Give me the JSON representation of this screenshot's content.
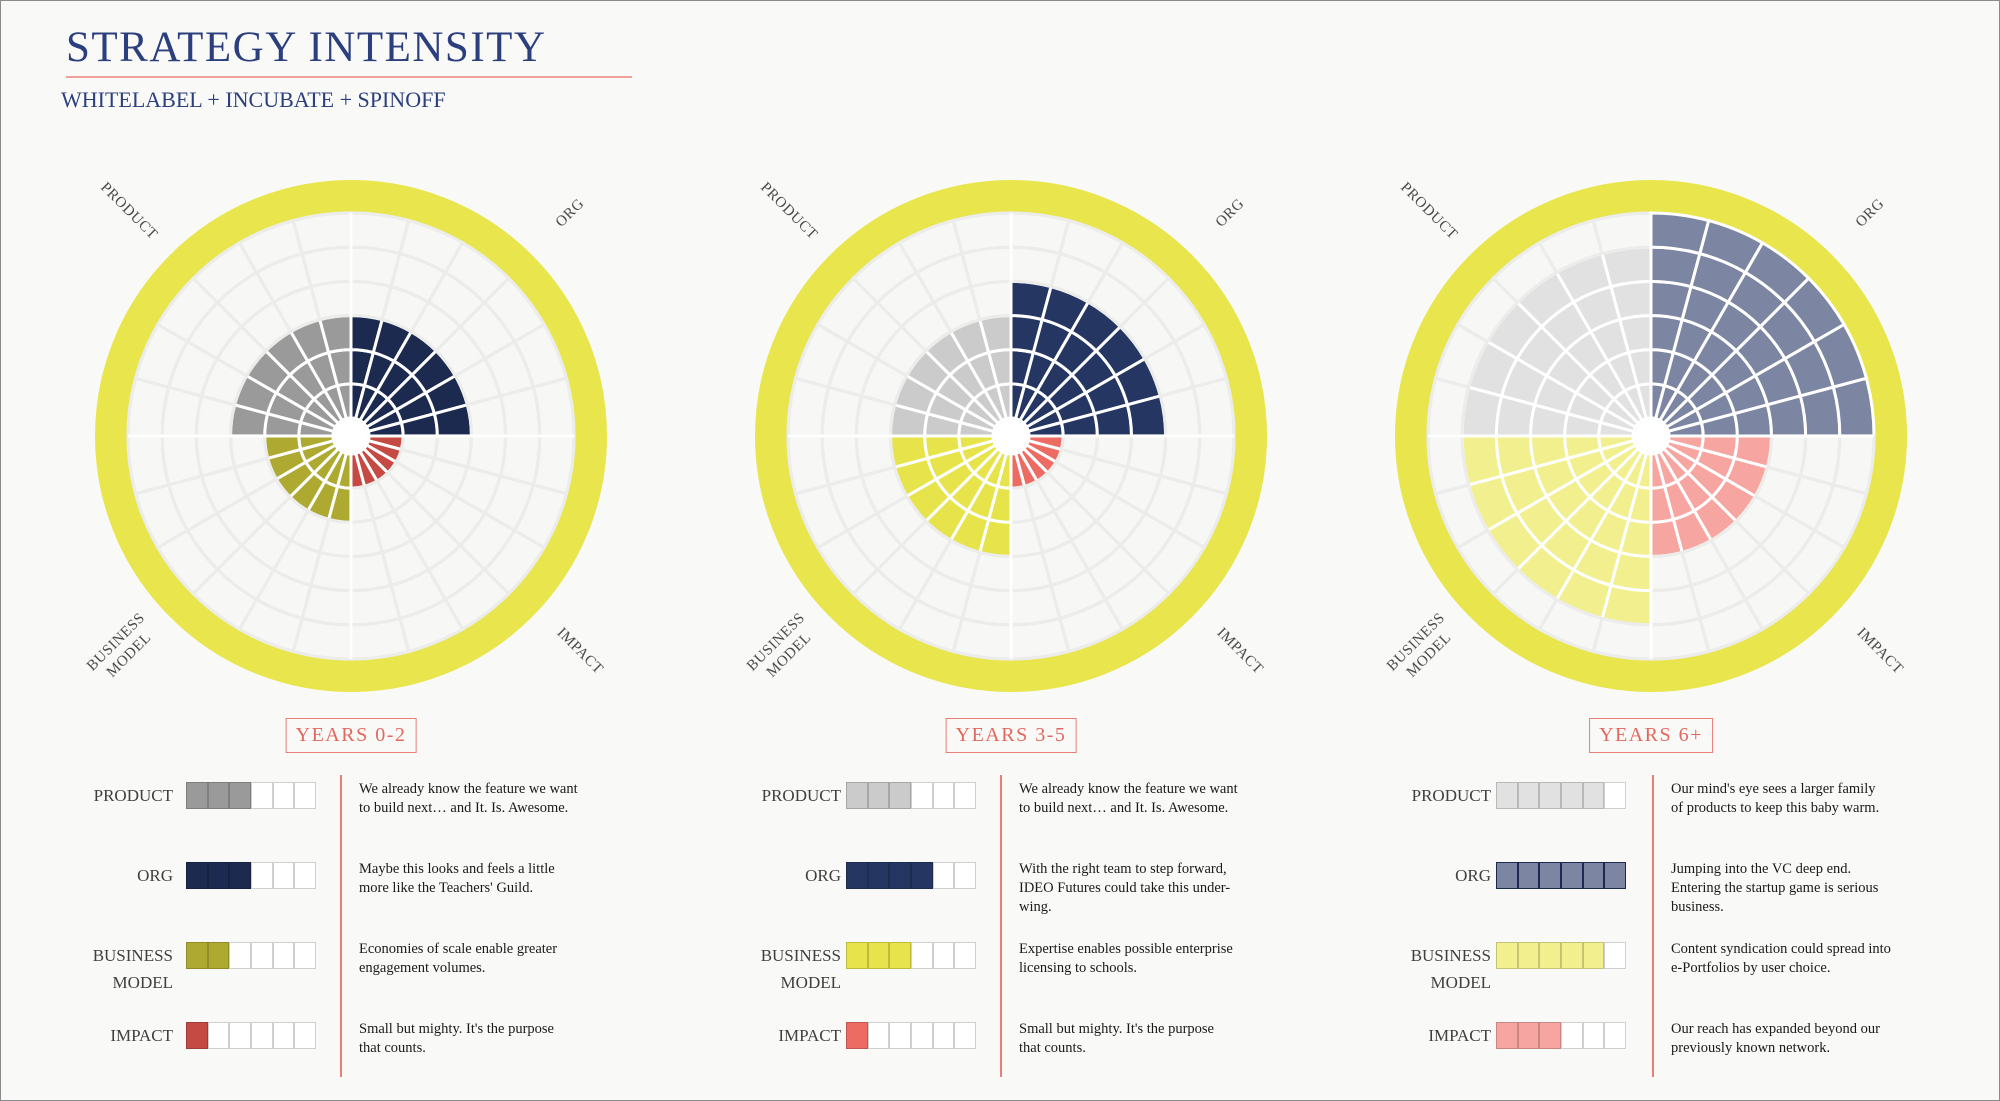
{
  "title": "STRATEGY INTENSITY",
  "subtitle": "WHITELABEL + INCUBATE + SPINOFF",
  "axis_labels": {
    "product": "PRODUCT",
    "org": "ORG",
    "business_line1": "BUSINESS",
    "business_line2": "MODEL",
    "impact": "IMPACT"
  },
  "row_labels": {
    "product": "PRODUCT",
    "org": "ORG",
    "business_line1": "BUSINESS",
    "business_line2": "MODEL",
    "impact": "IMPACT"
  },
  "colors": {
    "ring": "#e8e64c",
    "accent": "#e57f78",
    "title": "#2b3f7e"
  },
  "chart_data": [
    {
      "type": "radar-segment",
      "period": "YEARS 0-2",
      "max_level": 6,
      "scores": {
        "product": 3,
        "org": 3,
        "business_model": 2,
        "impact": 1
      },
      "colors": {
        "product": "#9a9a9a",
        "org": "#1c2a4f",
        "business_model": "#aeaa31",
        "impact": "#c44a43"
      },
      "descriptions": {
        "product": "We already know the feature we want to build next… and It. Is. Awesome.",
        "org": "Maybe this looks and feels a little more like the Teachers' Guild.",
        "business_model": "Economies of scale enable greater engagement volumes.",
        "impact": "Small but mighty. It's the purpose that counts."
      }
    },
    {
      "type": "radar-segment",
      "period": "YEARS 3-5",
      "max_level": 6,
      "scores": {
        "product": 3,
        "org": 4,
        "business_model": 3,
        "impact": 1
      },
      "colors": {
        "product": "#cbcbcb",
        "org": "#243661",
        "business_model": "#e6e44a",
        "impact": "#ec6b62"
      },
      "descriptions": {
        "product": "We already know the feature we want to build next… and It. Is. Awesome.",
        "org": "With the right team to step forward, IDEO Futures could take this under-wing.",
        "business_model": "Expertise enables possible enterprise licensing to schools.",
        "impact": "Small but mighty. It's the purpose that counts."
      }
    },
    {
      "type": "radar-segment",
      "period": "YEARS 6+",
      "max_level": 6,
      "scores": {
        "product": 5,
        "org": 6,
        "business_model": 5,
        "impact": 3
      },
      "colors": {
        "product": "#e1e1e1",
        "org": "#7c86a2",
        "business_model": "#f1ef8e",
        "impact": "#f6a5a0"
      },
      "descriptions": {
        "product": "Our mind's eye sees a larger family of products to keep this baby warm.",
        "org": "Jumping into the VC deep end. Entering the startup game is serious business.",
        "business_model": "Content syndication could spread into e-Portfolios by user choice.",
        "impact": "Our reach has expanded beyond our previously known network."
      }
    }
  ]
}
